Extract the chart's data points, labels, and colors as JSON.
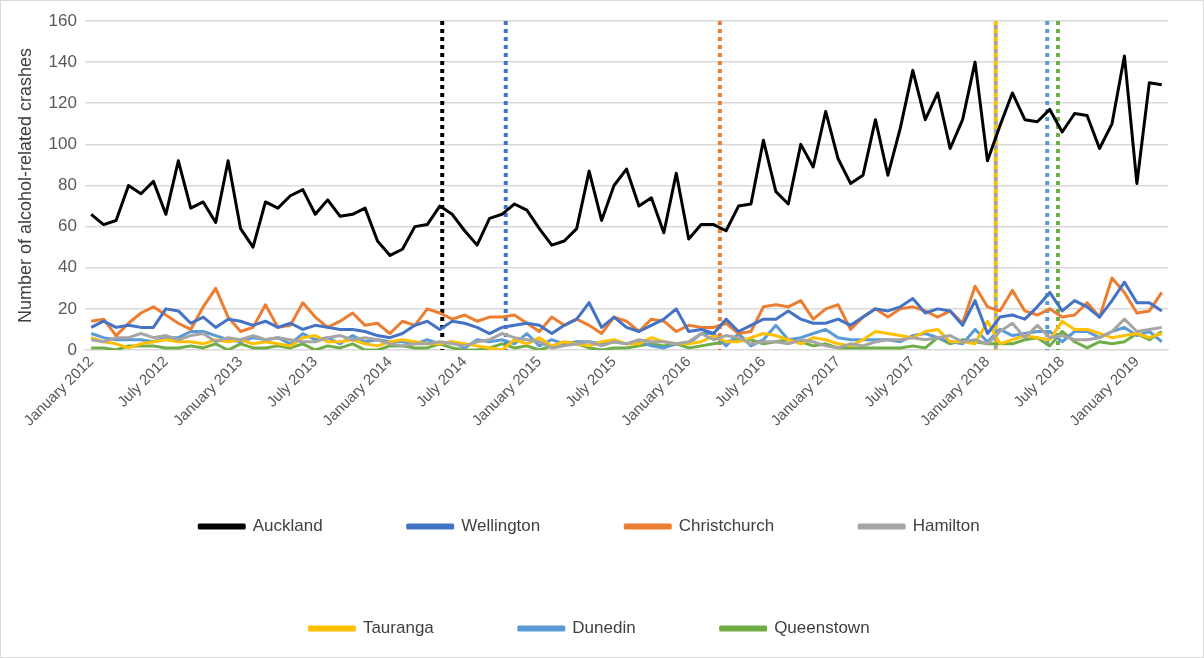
{
  "chart_data": {
    "type": "line",
    "ylabel": "Number of alcohol-related crashes",
    "x": [
      "2012-01",
      "2012-02",
      "2012-03",
      "2012-04",
      "2012-05",
      "2012-06",
      "2012-07",
      "2012-08",
      "2012-09",
      "2012-10",
      "2012-11",
      "2012-12",
      "2013-01",
      "2013-02",
      "2013-03",
      "2013-04",
      "2013-05",
      "2013-06",
      "2013-07",
      "2013-08",
      "2013-09",
      "2013-10",
      "2013-11",
      "2013-12",
      "2014-01",
      "2014-02",
      "2014-03",
      "2014-04",
      "2014-05",
      "2014-06",
      "2014-07",
      "2014-08",
      "2014-09",
      "2014-10",
      "2014-11",
      "2014-12",
      "2015-01",
      "2015-02",
      "2015-03",
      "2015-04",
      "2015-05",
      "2015-06",
      "2015-07",
      "2015-08",
      "2015-09",
      "2015-10",
      "2015-11",
      "2015-12",
      "2016-01",
      "2016-02",
      "2016-03",
      "2016-04",
      "2016-05",
      "2016-06",
      "2016-07",
      "2016-08",
      "2016-09",
      "2016-10",
      "2016-11",
      "2016-12",
      "2017-01",
      "2017-02",
      "2017-03",
      "2017-04",
      "2017-05",
      "2017-06",
      "2017-07",
      "2017-08",
      "2017-09",
      "2017-10",
      "2017-11",
      "2017-12",
      "2018-01",
      "2018-02",
      "2018-03",
      "2018-04",
      "2018-05",
      "2018-06",
      "2018-07",
      "2018-08",
      "2018-09",
      "2018-10",
      "2018-11",
      "2018-12",
      "2019-01",
      "2019-02",
      "2019-03"
    ],
    "xlim": [
      "2011-12-16",
      "2019-03-16"
    ],
    "xticks": [
      {
        "value": "2012-01",
        "label": "January 2012"
      },
      {
        "value": "2012-07",
        "label": "July 2012"
      },
      {
        "value": "2013-01",
        "label": "January 2013"
      },
      {
        "value": "2013-07",
        "label": "July 2013"
      },
      {
        "value": "2014-01",
        "label": "January 2014"
      },
      {
        "value": "2014-07",
        "label": "July 2014"
      },
      {
        "value": "2015-01",
        "label": "January 2015"
      },
      {
        "value": "2015-07",
        "label": "July 2015"
      },
      {
        "value": "2016-01",
        "label": "January 2016"
      },
      {
        "value": "2016-07",
        "label": "July 2016"
      },
      {
        "value": "2017-01",
        "label": "January 2017"
      },
      {
        "value": "2017-07",
        "label": "July 2017"
      },
      {
        "value": "2018-01",
        "label": "January 2018"
      },
      {
        "value": "2018-07",
        "label": "July 2018"
      },
      {
        "value": "2019-01",
        "label": "January 2019"
      }
    ],
    "ylim": [
      0,
      160
    ],
    "yticks": [
      0,
      20,
      40,
      60,
      80,
      100,
      120,
      140,
      160
    ],
    "grid": "y",
    "legend": "bottom",
    "marker": "none",
    "line_style": "solid",
    "series": [
      {
        "name": "Auckland",
        "color": "#000000",
        "values": [
          66,
          61,
          63,
          80,
          76,
          82,
          66,
          92,
          69,
          72,
          62,
          92,
          59,
          50,
          72,
          69,
          75,
          78,
          66,
          73,
          65,
          66,
          69,
          53,
          46,
          49,
          60,
          61,
          70,
          66,
          58,
          51,
          64,
          66,
          71,
          68,
          59,
          51,
          53,
          59,
          87,
          63,
          80,
          88,
          70,
          74,
          57,
          86,
          54,
          61,
          61,
          58,
          70,
          71,
          102,
          77,
          71,
          100,
          89,
          116,
          93,
          81,
          85,
          112,
          85,
          108,
          136,
          112,
          125,
          98,
          112,
          140,
          92,
          109,
          125,
          112,
          111,
          117,
          106,
          115,
          114,
          98,
          110,
          143,
          81,
          130,
          129
        ]
      },
      {
        "name": "Wellington",
        "color": "#4472c4",
        "values": [
          11,
          14,
          11,
          12,
          11,
          11,
          20,
          19,
          13,
          16,
          11,
          15,
          14,
          12,
          14,
          11,
          13,
          10,
          12,
          11,
          10,
          10,
          9,
          7,
          6,
          8,
          12,
          14,
          10,
          14,
          13,
          11,
          8,
          11,
          12,
          13,
          12,
          8,
          12,
          15,
          23,
          11,
          16,
          11,
          9,
          12,
          15,
          20,
          9,
          10,
          8,
          15,
          9,
          12,
          15,
          15,
          19,
          15,
          13,
          13,
          15,
          12,
          16,
          20,
          19,
          21,
          25,
          18,
          20,
          19,
          12,
          24,
          8,
          16,
          17,
          15,
          21,
          28,
          19,
          24,
          21,
          16,
          24,
          33,
          23,
          23,
          19
        ]
      },
      {
        "name": "Christchurch",
        "color": "#ed7d31",
        "values": [
          14,
          15,
          7,
          13,
          18,
          21,
          17,
          13,
          10,
          21,
          30,
          16,
          9,
          11,
          22,
          11,
          12,
          23,
          16,
          11,
          14,
          18,
          12,
          13,
          8,
          14,
          12,
          20,
          18,
          15,
          17,
          14,
          16,
          16,
          17,
          13,
          9,
          16,
          12,
          15,
          12,
          8,
          16,
          14,
          9,
          15,
          14,
          9,
          12,
          11,
          11,
          13,
          8,
          9,
          21,
          22,
          21,
          24,
          15,
          20,
          22,
          10,
          16,
          20,
          16,
          20,
          21,
          19,
          16,
          19,
          13,
          31,
          21,
          19,
          29,
          19,
          17,
          20,
          16,
          17,
          23,
          16,
          35,
          28,
          18,
          19,
          28
        ]
      },
      {
        "name": "Hamilton",
        "color": "#a5a5a5",
        "values": [
          5,
          4,
          6,
          6,
          8,
          6,
          7,
          5,
          7,
          8,
          4,
          6,
          5,
          7,
          5,
          6,
          5,
          4,
          4,
          6,
          7,
          5,
          6,
          5,
          3,
          2,
          3,
          3,
          4,
          3,
          2,
          4,
          5,
          8,
          6,
          5,
          4,
          1,
          2,
          3,
          4,
          2,
          4,
          3,
          5,
          4,
          4,
          3,
          4,
          8,
          5,
          7,
          6,
          3,
          4,
          4,
          3,
          5,
          4,
          2,
          1,
          3,
          2,
          4,
          5,
          5,
          6,
          5,
          6,
          7,
          4,
          5,
          3,
          9,
          13,
          6,
          12,
          6,
          7,
          5,
          5,
          6,
          9,
          15,
          9,
          10,
          11
        ]
      },
      {
        "name": "Tauranga",
        "color": "#ffc000",
        "values": [
          6,
          4,
          3,
          1,
          3,
          4,
          5,
          4,
          4,
          3,
          5,
          4,
          5,
          3,
          4,
          3,
          2,
          6,
          7,
          4,
          4,
          5,
          3,
          2,
          4,
          5,
          4,
          3,
          3,
          4,
          3,
          2,
          1,
          0,
          5,
          3,
          6,
          2,
          4,
          3,
          2,
          4,
          5,
          3,
          3,
          6,
          4,
          3,
          3,
          4,
          7,
          4,
          4,
          6,
          8,
          7,
          5,
          3,
          6,
          5,
          3,
          2,
          5,
          9,
          8,
          7,
          6,
          9,
          10,
          4,
          4,
          3,
          14,
          3,
          5,
          7,
          6,
          5,
          14,
          10,
          10,
          8,
          6,
          7,
          8,
          6,
          8
        ]
      },
      {
        "name": "Dunedin",
        "color": "#5b9bd5",
        "values": [
          8,
          6,
          5,
          5,
          5,
          4,
          6,
          6,
          9,
          9,
          7,
          5,
          4,
          6,
          5,
          6,
          3,
          8,
          5,
          6,
          3,
          7,
          4,
          5,
          4,
          4,
          3,
          5,
          3,
          4,
          1,
          5,
          4,
          5,
          3,
          8,
          2,
          5,
          3,
          4,
          4,
          3,
          4,
          3,
          4,
          2,
          1,
          3,
          3,
          8,
          8,
          2,
          8,
          2,
          5,
          12,
          5,
          6,
          8,
          10,
          6,
          5,
          5,
          5,
          5,
          4,
          7,
          8,
          6,
          4,
          3,
          10,
          4,
          10,
          7,
          8,
          9,
          9,
          4,
          9,
          9,
          6,
          9,
          11,
          7,
          9,
          4
        ]
      },
      {
        "name": "Queenstown",
        "color": "#70ad47",
        "values": [
          1,
          1,
          0,
          2,
          2,
          2,
          1,
          1,
          2,
          1,
          3,
          0,
          3,
          1,
          1,
          2,
          1,
          3,
          0,
          2,
          1,
          3,
          0,
          0,
          2,
          2,
          1,
          1,
          3,
          1,
          0,
          0,
          1,
          3,
          1,
          2,
          0,
          2,
          3,
          3,
          1,
          0,
          1,
          1,
          2,
          3,
          2,
          3,
          1,
          2,
          3,
          4,
          5,
          5,
          3,
          4,
          5,
          4,
          2,
          3,
          1,
          1,
          1,
          1,
          1,
          1,
          2,
          1,
          6,
          3,
          5,
          4,
          3,
          3,
          3,
          5,
          6,
          2,
          9,
          4,
          1,
          4,
          3,
          4,
          8,
          5,
          9
        ]
      }
    ],
    "ref_lines": [
      {
        "axis": "x",
        "value": "2014-05-07",
        "color": "#000000",
        "line_style": "dotted"
      },
      {
        "axis": "x",
        "value": "2014-10-10",
        "color": "#4472c4",
        "line_style": "dotted"
      },
      {
        "axis": "x",
        "value": "2016-03-16",
        "color": "#ed7d31",
        "line_style": "dotted"
      },
      {
        "axis": "x",
        "value": "2018-01-21",
        "color": "#ffc000",
        "line_style": "dotted"
      },
      {
        "axis": "x",
        "value": "2018-01-21",
        "color": "#a5a5a5",
        "line_style": "dotted"
      },
      {
        "axis": "x",
        "value": "2018-05-25",
        "color": "#5b9bd5",
        "line_style": "dotted"
      },
      {
        "axis": "x",
        "value": "2018-06-21",
        "color": "#70ad47",
        "line_style": "dotted"
      }
    ]
  }
}
